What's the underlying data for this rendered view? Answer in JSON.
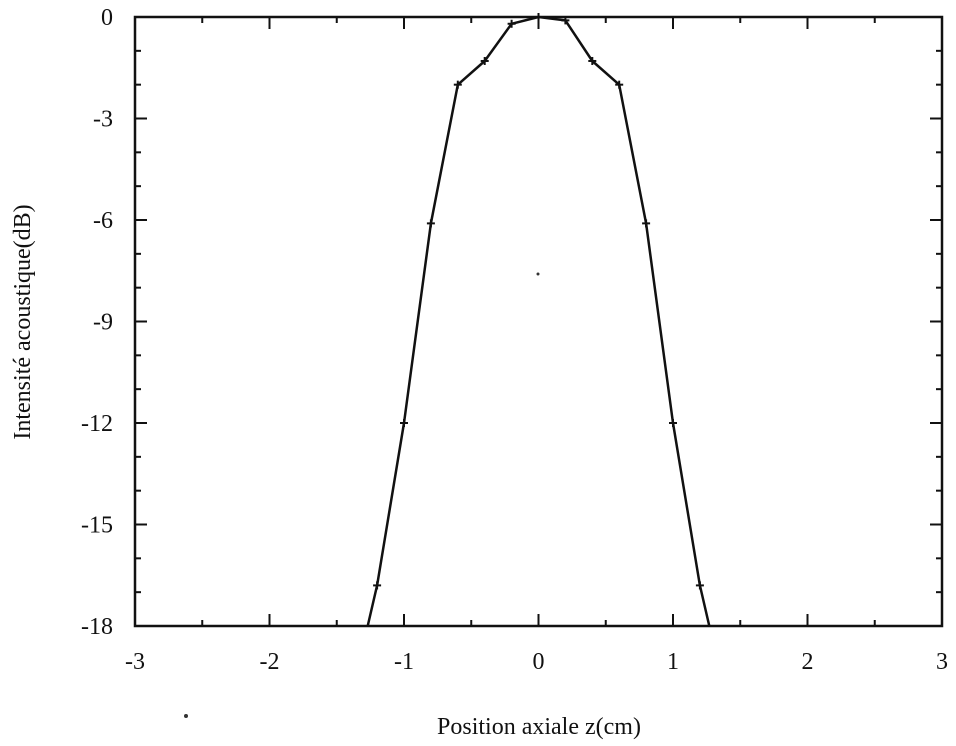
{
  "chart_data": {
    "type": "line",
    "xlabel": "Position axiale z(cm)",
    "ylabel": "Intensité acoustique(dB)",
    "xlim": [
      -3,
      3
    ],
    "ylim": [
      -18,
      0
    ],
    "xticks": [
      -3,
      -2,
      -1,
      0,
      1,
      2,
      3
    ],
    "xtick_labels": [
      "-3",
      "-2",
      "-1",
      "0",
      "1",
      "2",
      "3"
    ],
    "yticks": [
      0,
      -3,
      -6,
      -9,
      -12,
      -15,
      -18
    ],
    "ytick_labels": [
      "0",
      "-3",
      "-6",
      "-9",
      "-12",
      "-15",
      "-18"
    ],
    "grid": false,
    "series": [
      {
        "x": [
          -1.27,
          -1.2,
          -1.0,
          -0.8,
          -0.6,
          -0.4,
          -0.2,
          0.0,
          0.2,
          0.4,
          0.6,
          0.8,
          1.0,
          1.2,
          1.27
        ],
        "y": [
          -18.0,
          -16.8,
          -12.0,
          -6.1,
          -2.0,
          -1.3,
          -0.2,
          0.0,
          -0.1,
          -1.3,
          -2.0,
          -6.1,
          -12.0,
          -16.8,
          -18.0
        ],
        "markers": [
          false,
          true,
          true,
          true,
          true,
          true,
          true,
          true,
          true,
          true,
          true,
          true,
          true,
          true,
          false
        ]
      }
    ]
  }
}
